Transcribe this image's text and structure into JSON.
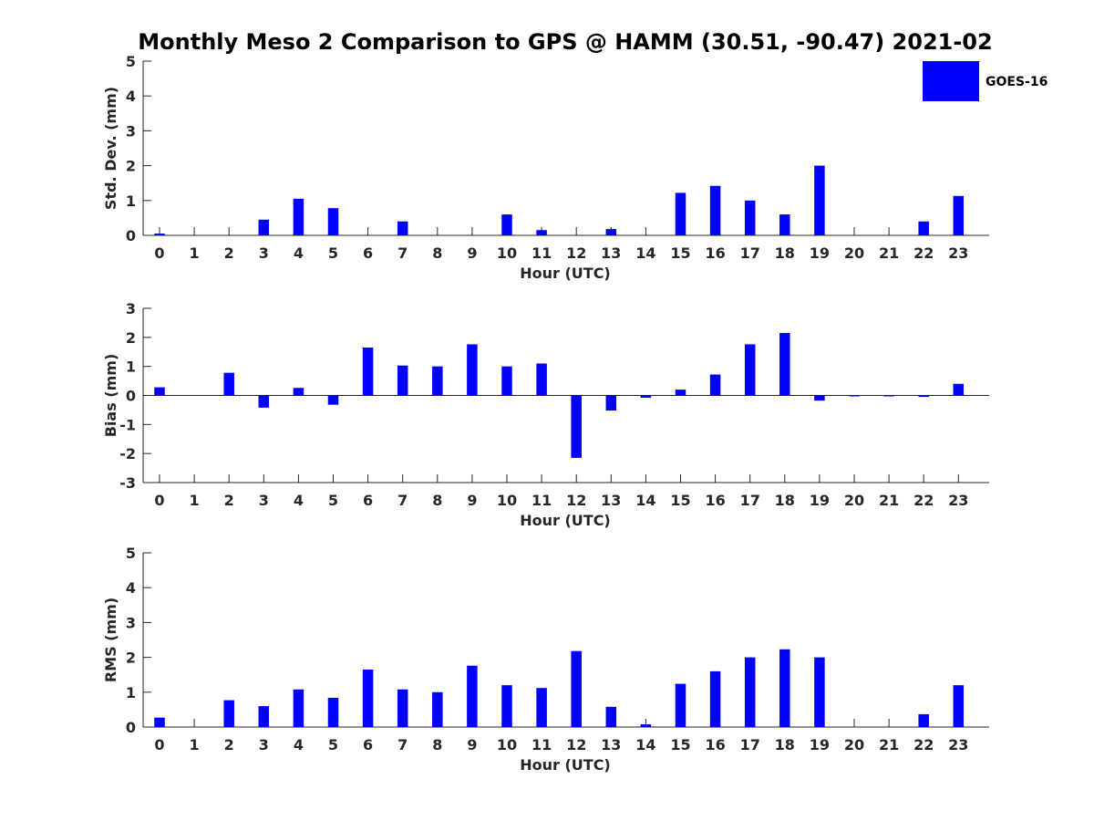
{
  "figure": {
    "title": "Monthly Meso 2 Comparison to GPS @ HAMM (30.51, -90.47) 2021-02",
    "bar_color": "#0000FF",
    "axis_color": "#262626"
  },
  "legend": {
    "label": "GOES-16",
    "placement": "top-right"
  },
  "chart_data": [
    {
      "type": "bar",
      "xlabel": "Hour (UTC)",
      "ylabel": "Std. Dev. (mm)",
      "ylim": [
        0,
        5
      ],
      "yticks": [
        0,
        1,
        2,
        3,
        4,
        5
      ],
      "categories": [
        "0",
        "1",
        "2",
        "3",
        "4",
        "5",
        "6",
        "7",
        "8",
        "9",
        "10",
        "11",
        "12",
        "13",
        "14",
        "15",
        "16",
        "17",
        "18",
        "19",
        "20",
        "21",
        "22",
        "23"
      ],
      "series": [
        {
          "name": "GOES-16",
          "values": [
            0.05,
            0,
            0,
            0.45,
            1.05,
            0.78,
            0,
            0.4,
            0,
            0,
            0.6,
            0.15,
            0,
            0.18,
            0,
            1.22,
            1.42,
            1.0,
            0.6,
            2.0,
            0,
            0,
            0.4,
            1.13
          ]
        }
      ]
    },
    {
      "type": "bar",
      "xlabel": "Hour (UTC)",
      "ylabel": "Bias (mm)",
      "ylim": [
        -3,
        3
      ],
      "yticks": [
        -3,
        -2,
        -1,
        0,
        1,
        2,
        3
      ],
      "categories": [
        "0",
        "1",
        "2",
        "3",
        "4",
        "5",
        "6",
        "7",
        "8",
        "9",
        "10",
        "11",
        "12",
        "13",
        "14",
        "15",
        "16",
        "17",
        "18",
        "19",
        "20",
        "21",
        "22",
        "23"
      ],
      "series": [
        {
          "name": "GOES-16",
          "values": [
            0.28,
            0,
            0.78,
            -0.42,
            0.26,
            -0.32,
            1.65,
            1.03,
            1.0,
            1.76,
            1.0,
            1.1,
            -2.15,
            -0.52,
            -0.08,
            0.2,
            0.72,
            1.76,
            2.15,
            -0.18,
            -0.02,
            -0.02,
            -0.05,
            0.4
          ]
        }
      ]
    },
    {
      "type": "bar",
      "xlabel": "Hour (UTC)",
      "ylabel": "RMS (mm)",
      "ylim": [
        0,
        5
      ],
      "yticks": [
        0,
        1,
        2,
        3,
        4,
        5
      ],
      "categories": [
        "0",
        "1",
        "2",
        "3",
        "4",
        "5",
        "6",
        "7",
        "8",
        "9",
        "10",
        "11",
        "12",
        "13",
        "14",
        "15",
        "16",
        "17",
        "18",
        "19",
        "20",
        "21",
        "22",
        "23"
      ],
      "series": [
        {
          "name": "GOES-16",
          "values": [
            0.27,
            0,
            0.77,
            0.6,
            1.08,
            0.84,
            1.65,
            1.08,
            1.0,
            1.76,
            1.2,
            1.12,
            2.18,
            0.58,
            0.08,
            1.24,
            1.6,
            2.0,
            2.23,
            2.0,
            0,
            0,
            0.37,
            1.2
          ]
        }
      ]
    }
  ]
}
